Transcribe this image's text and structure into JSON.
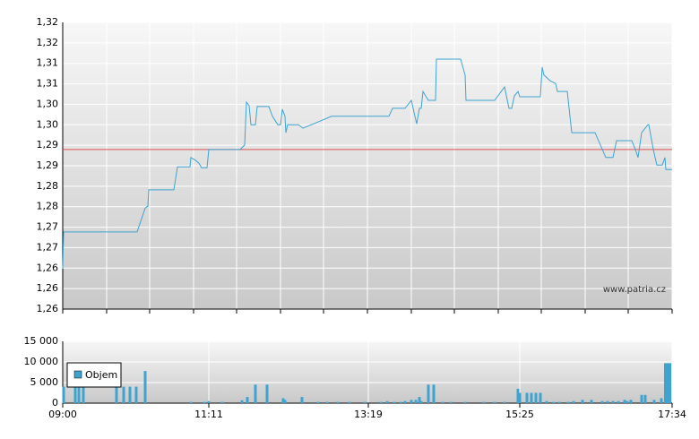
{
  "chart_data": [
    {
      "type": "line",
      "color": "#3fa3d0",
      "reference_line": 1.291,
      "reference_color": "#e05050",
      "grid": true,
      "watermark": "www.patria.cz",
      "xlim": [
        0,
        680
      ],
      "xticks": [
        0,
        49,
        97,
        146,
        194,
        243,
        291,
        340,
        389,
        437,
        486,
        534,
        583,
        631,
        680
      ],
      "ylim": [
        1.255,
        1.31968
      ],
      "yticks": [
        {
          "value": 1.255,
          "label": "1,26"
        },
        {
          "value": 1.25962,
          "label": "1,26"
        },
        {
          "value": 1.26424,
          "label": "1,26"
        },
        {
          "value": 1.26886,
          "label": "1,27"
        },
        {
          "value": 1.27348,
          "label": "1,27"
        },
        {
          "value": 1.2781,
          "label": "1,28"
        },
        {
          "value": 1.28272,
          "label": "1,28"
        },
        {
          "value": 1.28734,
          "label": "1,29"
        },
        {
          "value": 1.29196,
          "label": "1,29"
        },
        {
          "value": 1.29658,
          "label": "1,30"
        },
        {
          "value": 1.3012,
          "label": "1,30"
        },
        {
          "value": 1.30582,
          "label": "1,31"
        },
        {
          "value": 1.31044,
          "label": "1,31"
        },
        {
          "value": 1.31506,
          "label": "1,32"
        },
        {
          "value": 1.31968,
          "label": "1,32"
        }
      ],
      "x": [
        0,
        1,
        83,
        92,
        95,
        96,
        124,
        128,
        142,
        143,
        148,
        152,
        155,
        161,
        163,
        198,
        203,
        205,
        208,
        210,
        215,
        217,
        230,
        234,
        240,
        243,
        245,
        248,
        249,
        251,
        263,
        268,
        280,
        300,
        364,
        368,
        382,
        389,
        393,
        395,
        398,
        400,
        402,
        408,
        416,
        417,
        444,
        449,
        450,
        482,
        493,
        498,
        501,
        504,
        508,
        510,
        533,
        535,
        537,
        544,
        550,
        552,
        563,
        568,
        594,
        606,
        614,
        618,
        635,
        639,
        642,
        646,
        653,
        654,
        659,
        663,
        669,
        672,
        673,
        680
      ],
      "values": [
        1.2641,
        1.2724,
        1.2724,
        1.2778,
        1.2782,
        1.2819,
        1.2819,
        1.2871,
        1.2871,
        1.2892,
        1.2886,
        1.2879,
        1.2869,
        1.2869,
        1.291,
        1.291,
        1.292,
        1.3017,
        1.3009,
        1.2966,
        1.2966,
        1.3007,
        1.3007,
        1.2985,
        1.2966,
        1.2966,
        1.3001,
        1.2985,
        1.2948,
        1.2966,
        1.2966,
        1.2958,
        1.2968,
        1.2985,
        1.2985,
        1.3003,
        1.3003,
        1.3021,
        1.2985,
        1.2968,
        1.3003,
        1.3003,
        1.3041,
        1.3021,
        1.3021,
        1.3114,
        1.3114,
        1.3078,
        1.3021,
        1.3021,
        1.3051,
        1.3003,
        1.3003,
        1.3031,
        1.3041,
        1.3029,
        1.3029,
        1.3096,
        1.3078,
        1.3065,
        1.3059,
        1.3041,
        1.3041,
        1.2948,
        1.2948,
        1.2892,
        1.2892,
        1.293,
        1.293,
        1.291,
        1.2892,
        1.2948,
        1.2966,
        1.2966,
        1.291,
        1.2875,
        1.2875,
        1.2892,
        1.2865,
        1.2865
      ]
    },
    {
      "type": "bar",
      "grid": true,
      "xlim": [
        0,
        680
      ],
      "xticks": [
        {
          "value": 0,
          "label": "09:00"
        },
        {
          "value": 163,
          "label": "11:11"
        },
        {
          "value": 341,
          "label": "13:19"
        },
        {
          "value": 510,
          "label": "15:25"
        },
        {
          "value": 680,
          "label": "17:34"
        }
      ],
      "ylim": [
        0,
        15000
      ],
      "yticks": [
        {
          "value": 0,
          "label": "0"
        },
        {
          "value": 5000,
          "label": "5 000"
        },
        {
          "value": 10000,
          "label": "10 000"
        },
        {
          "value": 15000,
          "label": "15 000"
        }
      ],
      "x": [
        1,
        14,
        18,
        23,
        60,
        68,
        75,
        82,
        92,
        143,
        158,
        163,
        178,
        200,
        206,
        215,
        228,
        246,
        248,
        267,
        285,
        295,
        307,
        320,
        337,
        355,
        362,
        370,
        377,
        382,
        389,
        394,
        398,
        400,
        408,
        414,
        424,
        433,
        449,
        470,
        482,
        493,
        508,
        510,
        518,
        523,
        528,
        533,
        540,
        548,
        554,
        564,
        570,
        580,
        590,
        602,
        608,
        614,
        620,
        627,
        630,
        634,
        646,
        650,
        660,
        668,
        675
      ],
      "series": [
        {
          "name": "Objem",
          "color": "#3fa3d0",
          "values": [
            4000,
            4000,
            4000,
            4000,
            4000,
            4000,
            4000,
            4000,
            7800,
            300,
            300,
            500,
            300,
            700,
            1500,
            4500,
            4500,
            1200,
            800,
            1500,
            300,
            300,
            300,
            300,
            300,
            300,
            500,
            300,
            300,
            500,
            800,
            800,
            1500,
            500,
            4500,
            4500,
            300,
            300,
            300,
            300,
            300,
            300,
            3500,
            2500,
            2500,
            2500,
            2500,
            2500,
            500,
            300,
            300,
            300,
            500,
            800,
            800,
            500,
            500,
            500,
            500,
            800,
            500,
            800,
            2000,
            2000,
            800,
            1200,
            9700
          ]
        }
      ]
    }
  ]
}
